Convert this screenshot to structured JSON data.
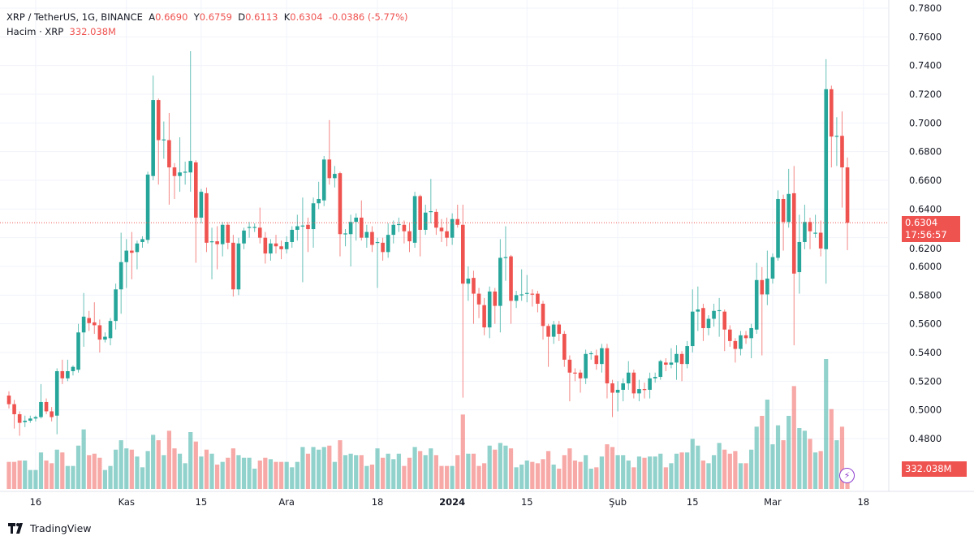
{
  "legend": {
    "symbol": "XRP / TetherUS, 1G, BINANCE",
    "o_label": "A",
    "o": "0.6690",
    "h_label": "Y",
    "h": "0.6759",
    "l_label": "D",
    "l": "0.6113",
    "c_label": "K",
    "c": "0.6304",
    "change": "-0.0386 (-5.77%)",
    "volume_label": "Hacim · XRP",
    "volume": "332.038M"
  },
  "price_tag": {
    "price": "0.6304",
    "countdown": "17:56:57"
  },
  "volume_tag": "332.038M",
  "branding": "TradingView",
  "colors": {
    "up": "#26a69a",
    "down": "#ef5350",
    "last_price_line": "#ef5350",
    "grid": "#f0f3fa"
  },
  "chart_data": {
    "type": "candlestick",
    "title": "XRP / TetherUS, 1G, BINANCE",
    "interval": "1G",
    "ylim": [
      0.446,
      0.786
    ],
    "y_ticks": [
      "0.7800",
      "0.7600",
      "0.7400",
      "0.7200",
      "0.7000",
      "0.6800",
      "0.6600",
      "0.6400",
      "0.6200",
      "0.6000",
      "0.5800",
      "0.5600",
      "0.5400",
      "0.5200",
      "0.5000",
      "0.4800"
    ],
    "x_ticks": [
      {
        "label": "16",
        "index": 5
      },
      {
        "label": "Kas",
        "index": 22
      },
      {
        "label": "15",
        "index": 36
      },
      {
        "label": "Ara",
        "index": 52
      },
      {
        "label": "18",
        "index": 69
      },
      {
        "label": "2024",
        "index": 83,
        "bold": true
      },
      {
        "label": "15",
        "index": 97
      },
      {
        "label": "Şub",
        "index": 114
      },
      {
        "label": "15",
        "index": 128
      },
      {
        "label": "Mar",
        "index": 143
      },
      {
        "label": "18",
        "index": 160
      }
    ],
    "last_price": 0.6304,
    "volume_unit": "M",
    "fields": [
      "open",
      "high",
      "low",
      "close",
      "volume"
    ],
    "candles": [
      [
        0.51,
        0.513,
        0.501,
        0.504,
        480
      ],
      [
        0.504,
        0.507,
        0.487,
        0.497,
        480
      ],
      [
        0.497,
        0.499,
        0.482,
        0.491,
        504
      ],
      [
        0.4915,
        0.496,
        0.488,
        0.4925,
        504
      ],
      [
        0.4925,
        0.496,
        0.491,
        0.494,
        336
      ],
      [
        0.494,
        0.496,
        0.492,
        0.495,
        336
      ],
      [
        0.495,
        0.518,
        0.494,
        0.5055,
        648
      ],
      [
        0.5055,
        0.508,
        0.497,
        0.499,
        504
      ],
      [
        0.499,
        0.502,
        0.492,
        0.495,
        456
      ],
      [
        0.496,
        0.529,
        0.483,
        0.527,
        696
      ],
      [
        0.527,
        0.535,
        0.518,
        0.522,
        648
      ],
      [
        0.522,
        0.535,
        0.52,
        0.527,
        408
      ],
      [
        0.527,
        0.531,
        0.524,
        0.53,
        408
      ],
      [
        0.528,
        0.56,
        0.526,
        0.554,
        768
      ],
      [
        0.554,
        0.5815,
        0.544,
        0.565,
        1056
      ],
      [
        0.564,
        0.569,
        0.555,
        0.5605,
        600
      ],
      [
        0.561,
        0.575,
        0.553,
        0.559,
        624
      ],
      [
        0.559,
        0.563,
        0.54,
        0.549,
        552
      ],
      [
        0.549,
        0.554,
        0.547,
        0.551,
        336
      ],
      [
        0.55,
        0.564,
        0.545,
        0.562,
        408
      ],
      [
        0.562,
        0.588,
        0.556,
        0.584,
        696
      ],
      [
        0.584,
        0.6235,
        0.567,
        0.603,
        864
      ],
      [
        0.603,
        0.619,
        0.585,
        0.611,
        720
      ],
      [
        0.611,
        0.624,
        0.591,
        0.6095,
        696
      ],
      [
        0.61,
        0.618,
        0.598,
        0.616,
        576
      ],
      [
        0.617,
        0.621,
        0.613,
        0.619,
        384
      ],
      [
        0.6185,
        0.666,
        0.616,
        0.664,
        672
      ],
      [
        0.663,
        0.733,
        0.66,
        0.716,
        960
      ],
      [
        0.716,
        0.717,
        0.657,
        0.688,
        864
      ],
      [
        0.688,
        0.701,
        0.675,
        0.6885,
        600
      ],
      [
        0.688,
        0.707,
        0.643,
        0.669,
        1032
      ],
      [
        0.669,
        0.672,
        0.647,
        0.663,
        720
      ],
      [
        0.663,
        0.69,
        0.652,
        0.6655,
        624
      ],
      [
        0.6655,
        0.673,
        0.657,
        0.666,
        456
      ],
      [
        0.6655,
        0.75,
        0.652,
        0.6735,
        1008
      ],
      [
        0.6725,
        0.674,
        0.6025,
        0.634,
        840
      ],
      [
        0.634,
        0.654,
        0.63,
        0.652,
        576
      ],
      [
        0.651,
        0.655,
        0.61,
        0.6165,
        696
      ],
      [
        0.617,
        0.627,
        0.591,
        0.6175,
        624
      ],
      [
        0.6175,
        0.628,
        0.598,
        0.6155,
        432
      ],
      [
        0.6155,
        0.631,
        0.607,
        0.629,
        480
      ],
      [
        0.629,
        0.631,
        0.612,
        0.6165,
        552
      ],
      [
        0.6165,
        0.622,
        0.579,
        0.584,
        720
      ],
      [
        0.584,
        0.62,
        0.58,
        0.616,
        600
      ],
      [
        0.616,
        0.627,
        0.612,
        0.625,
        552
      ],
      [
        0.627,
        0.631,
        0.62,
        0.6275,
        552
      ],
      [
        0.627,
        0.63,
        0.624,
        0.6275,
        360
      ],
      [
        0.627,
        0.641,
        0.616,
        0.62,
        504
      ],
      [
        0.62,
        0.624,
        0.602,
        0.609,
        552
      ],
      [
        0.609,
        0.619,
        0.604,
        0.616,
        528
      ],
      [
        0.616,
        0.622,
        0.609,
        0.614,
        480
      ],
      [
        0.614,
        0.618,
        0.605,
        0.612,
        480
      ],
      [
        0.612,
        0.621,
        0.609,
        0.617,
        480
      ],
      [
        0.617,
        0.628,
        0.613,
        0.6255,
        384
      ],
      [
        0.6255,
        0.636,
        0.618,
        0.628,
        480
      ],
      [
        0.628,
        0.648,
        0.589,
        0.6285,
        744
      ],
      [
        0.629,
        0.634,
        0.61,
        0.626,
        624
      ],
      [
        0.626,
        0.648,
        0.613,
        0.644,
        744
      ],
      [
        0.644,
        0.659,
        0.64,
        0.647,
        696
      ],
      [
        0.646,
        0.677,
        0.642,
        0.6745,
        744
      ],
      [
        0.6745,
        0.702,
        0.657,
        0.6615,
        768
      ],
      [
        0.6615,
        0.67,
        0.655,
        0.6645,
        480
      ],
      [
        0.665,
        0.666,
        0.607,
        0.6225,
        864
      ],
      [
        0.6225,
        0.626,
        0.614,
        0.623,
        600
      ],
      [
        0.6225,
        0.636,
        0.6,
        0.631,
        624
      ],
      [
        0.631,
        0.637,
        0.618,
        0.634,
        600
      ],
      [
        0.634,
        0.646,
        0.618,
        0.62,
        600
      ],
      [
        0.62,
        0.629,
        0.613,
        0.624,
        408
      ],
      [
        0.624,
        0.628,
        0.61,
        0.615,
        432
      ],
      [
        0.6165,
        0.62,
        0.585,
        0.617,
        720
      ],
      [
        0.6165,
        0.62,
        0.604,
        0.61,
        552
      ],
      [
        0.61,
        0.63,
        0.606,
        0.622,
        624
      ],
      [
        0.622,
        0.632,
        0.616,
        0.629,
        528
      ],
      [
        0.629,
        0.634,
        0.624,
        0.6295,
        624
      ],
      [
        0.629,
        0.632,
        0.616,
        0.6245,
        408
      ],
      [
        0.6245,
        0.63,
        0.61,
        0.6175,
        552
      ],
      [
        0.6165,
        0.652,
        0.613,
        0.649,
        744
      ],
      [
        0.649,
        0.65,
        0.607,
        0.6255,
        672
      ],
      [
        0.6255,
        0.643,
        0.622,
        0.6375,
        600
      ],
      [
        0.638,
        0.661,
        0.63,
        0.6385,
        720
      ],
      [
        0.638,
        0.64,
        0.622,
        0.627,
        600
      ],
      [
        0.627,
        0.633,
        0.617,
        0.6245,
        408
      ],
      [
        0.6245,
        0.634,
        0.614,
        0.62,
        408
      ],
      [
        0.62,
        0.637,
        0.615,
        0.633,
        408
      ],
      [
        0.633,
        0.643,
        0.627,
        0.629,
        600
      ],
      [
        0.629,
        0.643,
        0.5085,
        0.588,
        1320
      ],
      [
        0.588,
        0.6,
        0.576,
        0.5915,
        624
      ],
      [
        0.592,
        0.597,
        0.56,
        0.581,
        624
      ],
      [
        0.581,
        0.585,
        0.564,
        0.5735,
        408
      ],
      [
        0.573,
        0.578,
        0.552,
        0.5575,
        456
      ],
      [
        0.5575,
        0.586,
        0.55,
        0.5825,
        768
      ],
      [
        0.5825,
        0.585,
        0.56,
        0.5725,
        696
      ],
      [
        0.5725,
        0.619,
        0.554,
        0.606,
        816
      ],
      [
        0.606,
        0.628,
        0.59,
        0.6065,
        768
      ],
      [
        0.607,
        0.608,
        0.56,
        0.576,
        720
      ],
      [
        0.576,
        0.583,
        0.571,
        0.58,
        384
      ],
      [
        0.58,
        0.598,
        0.576,
        0.5805,
        432
      ],
      [
        0.581,
        0.594,
        0.575,
        0.5815,
        504
      ],
      [
        0.581,
        0.584,
        0.572,
        0.5805,
        480
      ],
      [
        0.581,
        0.583,
        0.568,
        0.574,
        456
      ],
      [
        0.574,
        0.576,
        0.549,
        0.5585,
        528
      ],
      [
        0.5585,
        0.56,
        0.53,
        0.551,
        672
      ],
      [
        0.551,
        0.562,
        0.546,
        0.5595,
        432
      ],
      [
        0.5595,
        0.562,
        0.548,
        0.553,
        360
      ],
      [
        0.553,
        0.555,
        0.53,
        0.535,
        600
      ],
      [
        0.535,
        0.538,
        0.506,
        0.526,
        720
      ],
      [
        0.526,
        0.529,
        0.52,
        0.5255,
        504
      ],
      [
        0.526,
        0.528,
        0.512,
        0.522,
        480
      ],
      [
        0.522,
        0.542,
        0.518,
        0.539,
        600
      ],
      [
        0.539,
        0.541,
        0.535,
        0.5395,
        360
      ],
      [
        0.538,
        0.542,
        0.528,
        0.532,
        384
      ],
      [
        0.532,
        0.546,
        0.526,
        0.543,
        576
      ],
      [
        0.543,
        0.546,
        0.508,
        0.5185,
        792
      ],
      [
        0.5185,
        0.521,
        0.495,
        0.512,
        744
      ],
      [
        0.512,
        0.52,
        0.499,
        0.514,
        600
      ],
      [
        0.514,
        0.522,
        0.506,
        0.5185,
        600
      ],
      [
        0.5185,
        0.534,
        0.514,
        0.526,
        504
      ],
      [
        0.526,
        0.528,
        0.508,
        0.5115,
        384
      ],
      [
        0.5115,
        0.521,
        0.506,
        0.5145,
        576
      ],
      [
        0.5145,
        0.519,
        0.508,
        0.514,
        552
      ],
      [
        0.514,
        0.526,
        0.508,
        0.522,
        576
      ],
      [
        0.522,
        0.526,
        0.519,
        0.523,
        576
      ],
      [
        0.523,
        0.535,
        0.521,
        0.534,
        624
      ],
      [
        0.533,
        0.536,
        0.527,
        0.5315,
        384
      ],
      [
        0.5315,
        0.543,
        0.529,
        0.533,
        456
      ],
      [
        0.533,
        0.545,
        0.521,
        0.539,
        624
      ],
      [
        0.539,
        0.541,
        0.52,
        0.532,
        648
      ],
      [
        0.532,
        0.548,
        0.529,
        0.5445,
        648
      ],
      [
        0.5445,
        0.584,
        0.54,
        0.5685,
        888
      ],
      [
        0.5685,
        0.586,
        0.555,
        0.57,
        768
      ],
      [
        0.571,
        0.574,
        0.548,
        0.557,
        504
      ],
      [
        0.557,
        0.566,
        0.552,
        0.5635,
        456
      ],
      [
        0.5635,
        0.574,
        0.558,
        0.569,
        600
      ],
      [
        0.569,
        0.578,
        0.551,
        0.5695,
        816
      ],
      [
        0.5685,
        0.57,
        0.541,
        0.556,
        696
      ],
      [
        0.556,
        0.559,
        0.544,
        0.548,
        624
      ],
      [
        0.548,
        0.55,
        0.533,
        0.5425,
        672
      ],
      [
        0.5425,
        0.555,
        0.538,
        0.552,
        456
      ],
      [
        0.552,
        0.555,
        0.546,
        0.55,
        456
      ],
      [
        0.55,
        0.56,
        0.536,
        0.557,
        696
      ],
      [
        0.556,
        0.6025,
        0.553,
        0.5905,
        1104
      ],
      [
        0.5905,
        0.5995,
        0.538,
        0.5805,
        1296
      ],
      [
        0.5805,
        0.611,
        0.573,
        0.5915,
        1584
      ],
      [
        0.5915,
        0.609,
        0.588,
        0.6065,
        792
      ],
      [
        0.606,
        0.653,
        0.604,
        0.647,
        1128
      ],
      [
        0.647,
        0.65,
        0.611,
        0.631,
        864
      ],
      [
        0.631,
        0.668,
        0.627,
        0.6505,
        1296
      ],
      [
        0.651,
        0.67,
        0.545,
        0.595,
        1824
      ],
      [
        0.596,
        0.636,
        0.581,
        0.617,
        1080
      ],
      [
        0.617,
        0.643,
        0.612,
        0.631,
        1032
      ],
      [
        0.631,
        0.634,
        0.612,
        0.6245,
        888
      ],
      [
        0.6235,
        0.636,
        0.62,
        0.6235,
        648
      ],
      [
        0.6235,
        0.632,
        0.607,
        0.6125,
        672
      ],
      [
        0.612,
        0.7445,
        0.588,
        0.7235,
        2304
      ],
      [
        0.7235,
        0.726,
        0.669,
        0.6905,
        1416
      ],
      [
        0.6905,
        0.704,
        0.67,
        0.691,
        864
      ],
      [
        0.691,
        0.708,
        0.641,
        0.669,
        1104
      ],
      [
        0.669,
        0.6759,
        0.6113,
        0.6304,
        332.038
      ]
    ]
  }
}
